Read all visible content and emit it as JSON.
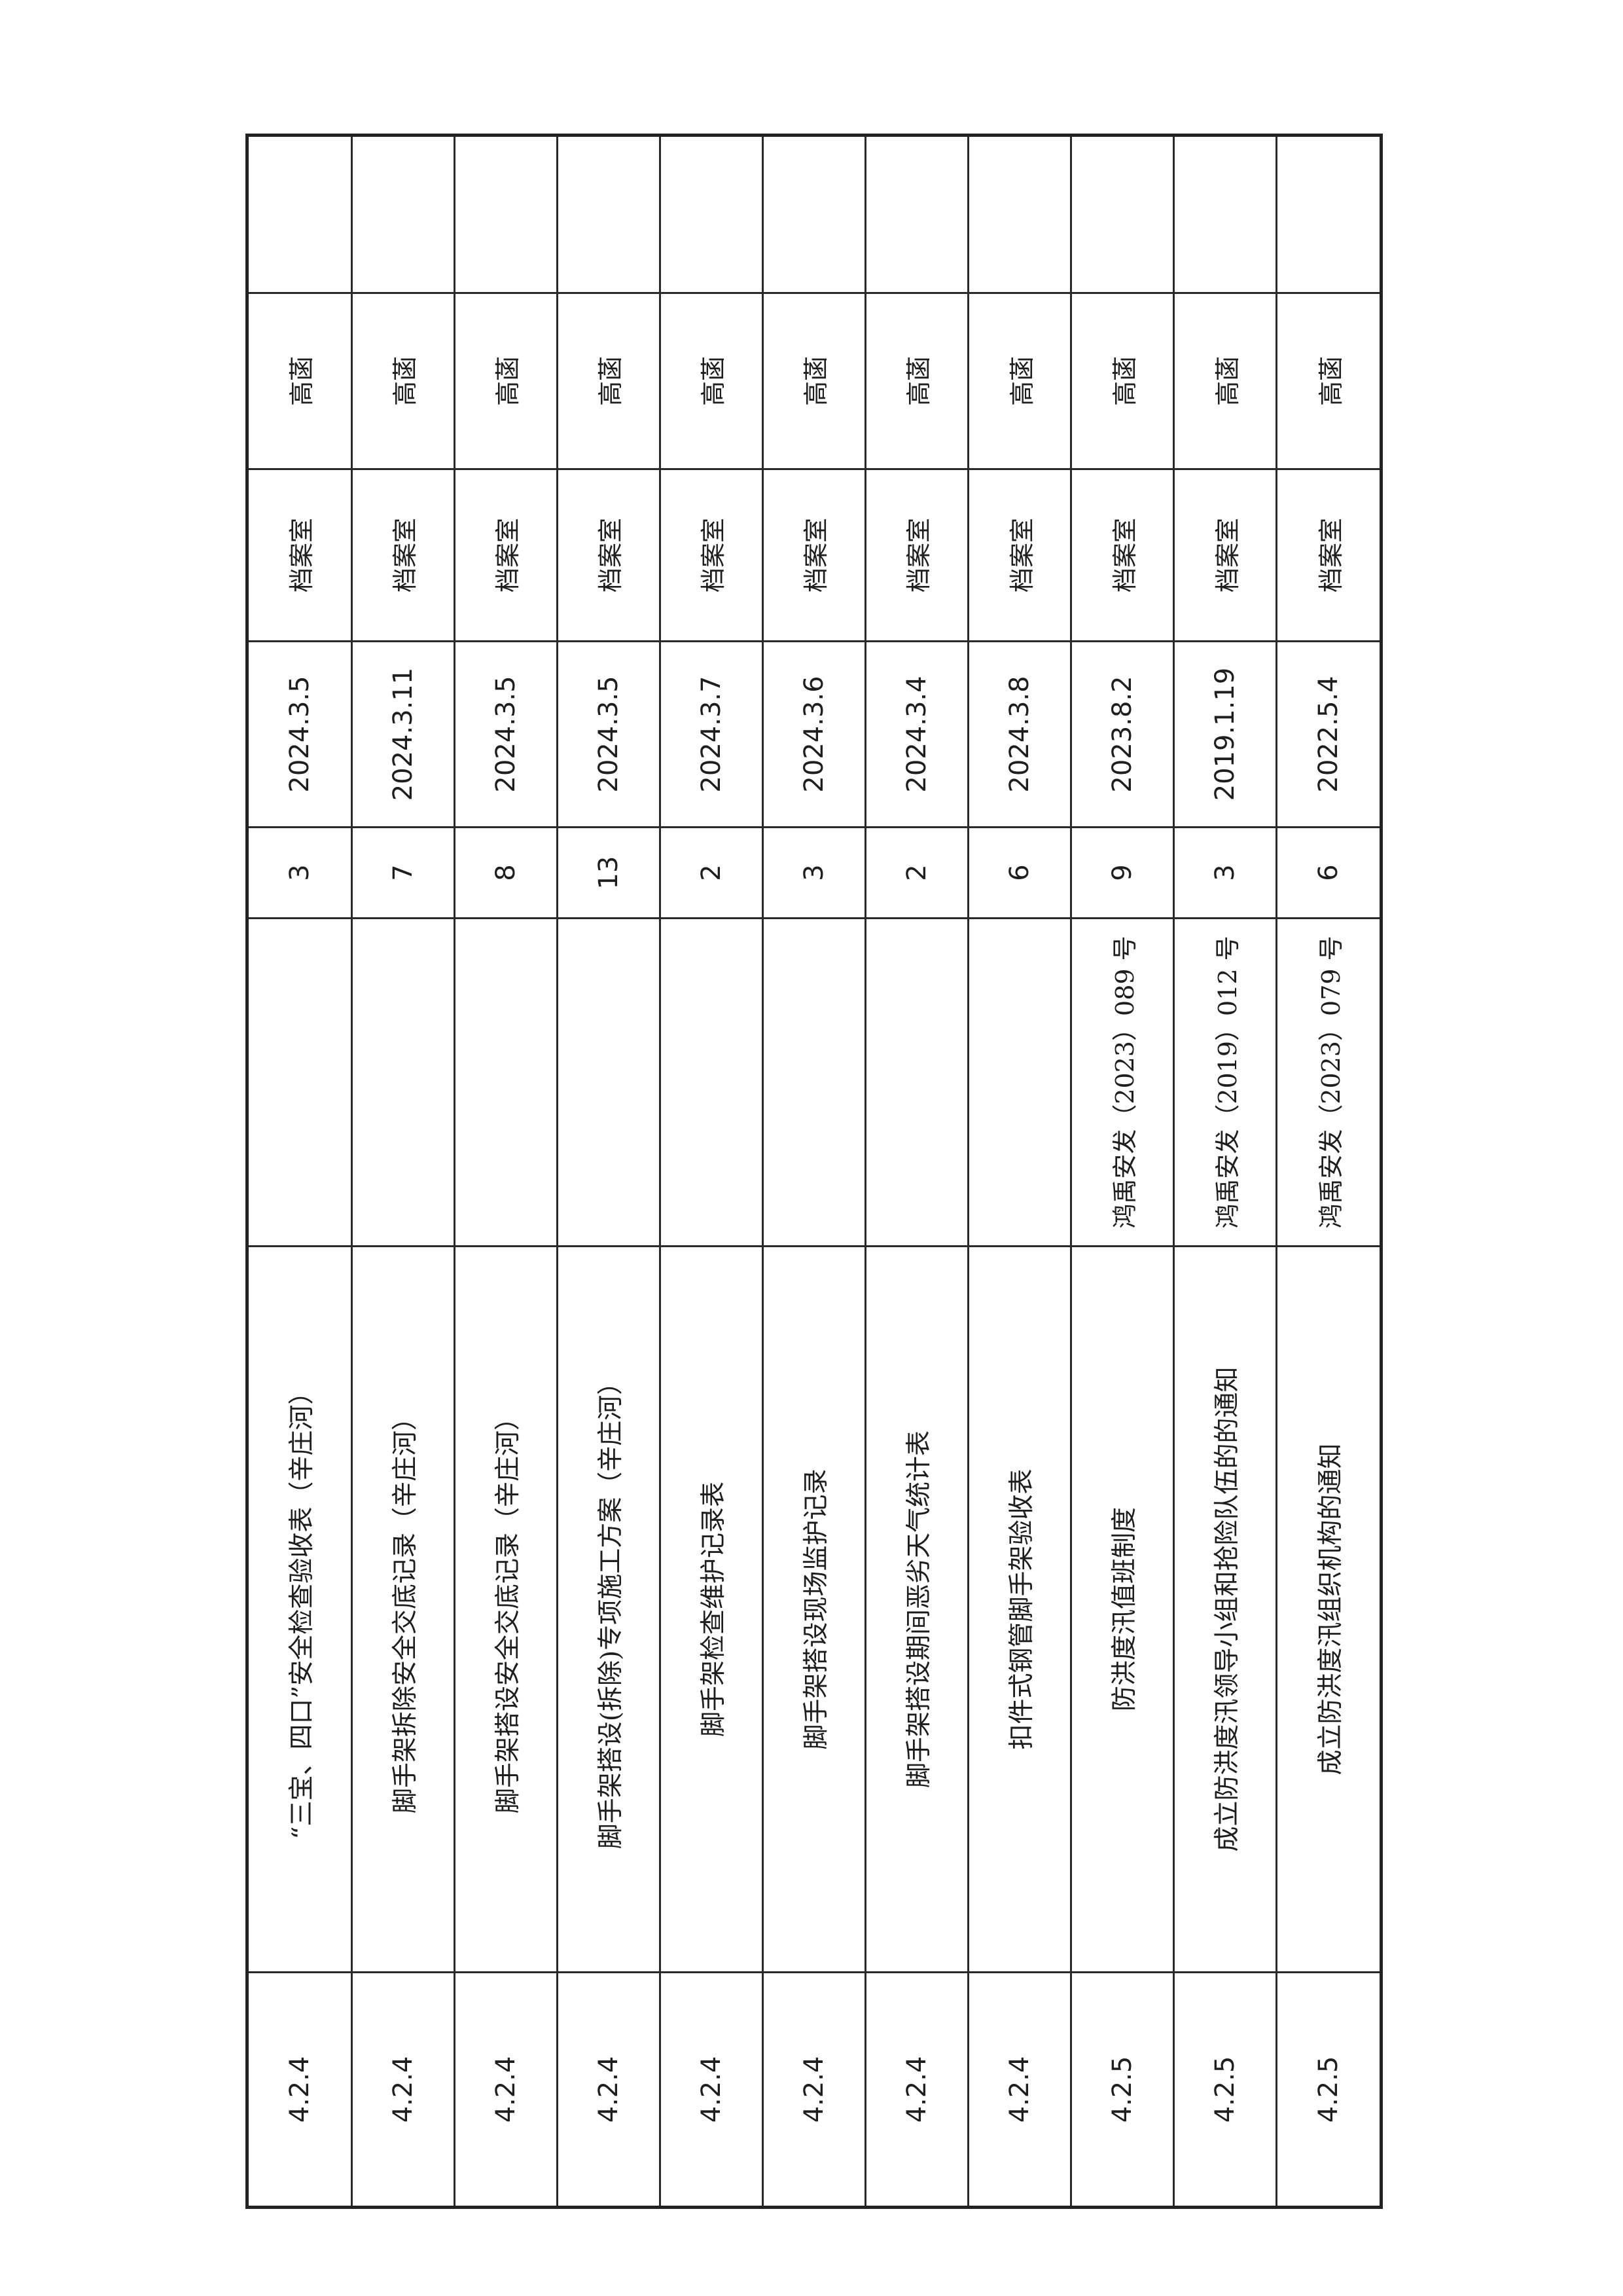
{
  "table": {
    "rows": [
      {
        "code": "4.2.4",
        "description": "“三宝、四口”安全检查验收表（辛庄河）",
        "doc_number": "",
        "pages": "3",
        "date": "2024.3.5",
        "location": "档案室",
        "person": "高菡",
        "remark": ""
      },
      {
        "code": "4.2.4",
        "description": "脚手架拆除安全交底记录（辛庄河）",
        "doc_number": "",
        "pages": "7",
        "date": "2024.3.11",
        "location": "档案室",
        "person": "高菡",
        "remark": ""
      },
      {
        "code": "4.2.4",
        "description": "脚手架搭设安全交底记录（辛庄河）",
        "doc_number": "",
        "pages": "8",
        "date": "2024.3.5",
        "location": "档案室",
        "person": "高菡",
        "remark": ""
      },
      {
        "code": "4.2.4",
        "description": "脚手架搭设(拆除)专项施工方案（辛庄河）",
        "doc_number": "",
        "pages": "13",
        "date": "2024.3.5",
        "location": "档案室",
        "person": "高菡",
        "remark": ""
      },
      {
        "code": "4.2.4",
        "description": "脚手架检查维护记录表",
        "doc_number": "",
        "pages": "2",
        "date": "2024.3.7",
        "location": "档案室",
        "person": "高菡",
        "remark": ""
      },
      {
        "code": "4.2.4",
        "description": "脚手架搭设现场监护记录",
        "doc_number": "",
        "pages": "3",
        "date": "2024.3.6",
        "location": "档案室",
        "person": "高菡",
        "remark": ""
      },
      {
        "code": "4.2.4",
        "description": "脚手架搭设期间恶劣天气统计表",
        "doc_number": "",
        "pages": "2",
        "date": "2024.3.4",
        "location": "档案室",
        "person": "高菡",
        "remark": ""
      },
      {
        "code": "4.2.4",
        "description": "扣件式钢管脚手架验收表",
        "doc_number": "",
        "pages": "6",
        "date": "2024.3.8",
        "location": "档案室",
        "person": "高菡",
        "remark": ""
      },
      {
        "code": "4.2.5",
        "description": "防洪度汛值班制度",
        "doc_number": "鸿禹安发（2023）089 号",
        "pages": "9",
        "date": "2023.8.2",
        "location": "档案室",
        "person": "高菡",
        "remark": ""
      },
      {
        "code": "4.2.5",
        "description": "成立防洪度汛领导小组和抢险队伍的的通知",
        "doc_number": "鸿禹安发（2019）012 号",
        "pages": "3",
        "date": "2019.1.19",
        "location": "档案室",
        "person": "高菡",
        "remark": ""
      },
      {
        "code": "4.2.5",
        "description": "成立防洪度汛组织机构的通知",
        "doc_number": "鸿禹安发（2023）079 号",
        "pages": "6",
        "date": "2022.5.4",
        "location": "档案室",
        "person": "高菡",
        "remark": ""
      }
    ]
  }
}
